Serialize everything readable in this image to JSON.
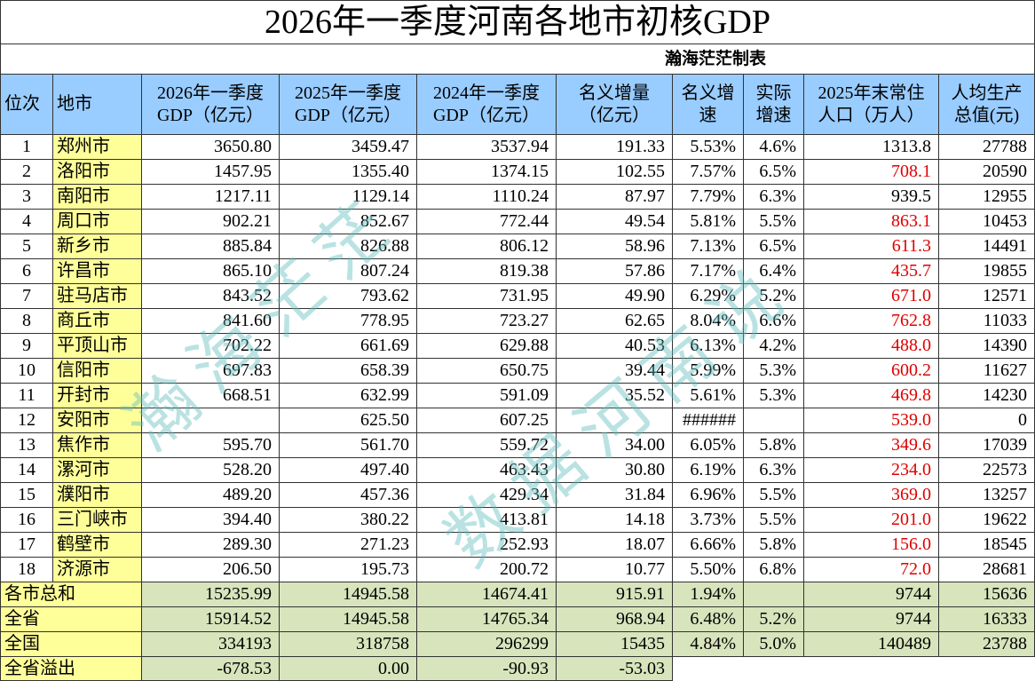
{
  "title": "2026年一季度河南各地市初核GDP",
  "subtitle": "瀚海茫茫制表",
  "watermark": [
    "瀚海茫茫",
    "数据河南说"
  ],
  "table": {
    "header": [
      "位次",
      "地市",
      "2026年一季度\nGDP（亿元）",
      "2025年一季度\nGDP（亿元）",
      "2024年一季度\nGDP（亿元）",
      "名义增量\n（亿元）",
      "名义增\n速",
      "实际\n增速",
      "2025年末常住\n人口（万人）",
      "人均生产\n总值(元)"
    ],
    "rows": [
      [
        "1",
        "郑州市",
        "3650.80",
        "3459.47",
        "3537.94",
        "191.33",
        "5.53%",
        "4.6%",
        "1313.8",
        "27788"
      ],
      [
        "2",
        "洛阳市",
        "1457.95",
        "1355.40",
        "1374.15",
        "102.55",
        "7.57%",
        "6.5%",
        "708.1",
        "20590"
      ],
      [
        "3",
        "南阳市",
        "1217.11",
        "1129.14",
        "1110.24",
        "87.97",
        "7.79%",
        "6.3%",
        "939.5",
        "12955"
      ],
      [
        "4",
        "周口市",
        "902.21",
        "852.67",
        "772.44",
        "49.54",
        "5.81%",
        "5.5%",
        "863.1",
        "10453"
      ],
      [
        "5",
        "新乡市",
        "885.84",
        "826.88",
        "806.12",
        "58.96",
        "7.13%",
        "6.5%",
        "611.3",
        "14491"
      ],
      [
        "6",
        "许昌市",
        "865.10",
        "807.24",
        "819.38",
        "57.86",
        "7.17%",
        "6.4%",
        "435.7",
        "19855"
      ],
      [
        "7",
        "驻马店市",
        "843.52",
        "793.62",
        "731.95",
        "49.90",
        "6.29%",
        "5.2%",
        "671.0",
        "12571"
      ],
      [
        "8",
        "商丘市",
        "841.60",
        "778.95",
        "723.27",
        "62.65",
        "8.04%",
        "6.6%",
        "762.8",
        "11033"
      ],
      [
        "9",
        "平顶山市",
        "702.22",
        "661.69",
        "629.88",
        "40.53",
        "6.13%",
        "4.2%",
        "488.0",
        "14390"
      ],
      [
        "10",
        "信阳市",
        "697.83",
        "658.39",
        "650.75",
        "39.44",
        "5.99%",
        "5.3%",
        "600.2",
        "11627"
      ],
      [
        "11",
        "开封市",
        "668.51",
        "632.99",
        "591.09",
        "35.52",
        "5.61%",
        "5.3%",
        "469.8",
        "14230"
      ],
      [
        "12",
        "安阳市",
        null,
        "625.50",
        "607.25",
        null,
        "######",
        null,
        "539.0",
        "0"
      ],
      [
        "13",
        "焦作市",
        "595.70",
        "561.70",
        "559.72",
        "34.00",
        "6.05%",
        "5.8%",
        "349.6",
        "17039"
      ],
      [
        "14",
        "漯河市",
        "528.20",
        "497.40",
        "463.43",
        "30.80",
        "6.19%",
        "6.3%",
        "234.0",
        "22573"
      ],
      [
        "15",
        "濮阳市",
        "489.20",
        "457.36",
        "429.34",
        "31.84",
        "6.96%",
        "5.5%",
        "369.0",
        "13257"
      ],
      [
        "16",
        "三门峡市",
        "394.40",
        "380.22",
        "413.81",
        "14.18",
        "3.73%",
        "5.5%",
        "201.0",
        "19622"
      ],
      [
        "17",
        "鹤壁市",
        "289.30",
        "271.23",
        "252.93",
        "18.07",
        "6.66%",
        "5.8%",
        "156.0",
        "18545"
      ],
      [
        "18",
        "济源市",
        "206.50",
        "195.73",
        "200.72",
        "10.77",
        "5.50%",
        "6.8%",
        "72.0",
        "28681"
      ]
    ],
    "population_colors": [
      "#000000",
      "#e00000",
      "#000000",
      "#e00000",
      "#e00000",
      "#e00000",
      "#e00000",
      "#e00000",
      "#e00000",
      "#e00000",
      "#e00000",
      "#e00000",
      "#e00000",
      "#e00000",
      "#e00000",
      "#e00000",
      "#e00000",
      "#e00000"
    ],
    "summary": [
      [
        "各市总和",
        "15235.99",
        "14945.58",
        "14674.41",
        "915.91",
        "1.94%",
        null,
        "9744",
        "15636"
      ],
      [
        "全省",
        "15914.52",
        "14945.58",
        "14765.34",
        "968.94",
        "6.48%",
        "5.2%",
        "9744",
        "16333"
      ],
      [
        "全国",
        "334193",
        "318758",
        "296299",
        "15435",
        "4.84%",
        "5.0%",
        "140489",
        "23788"
      ],
      [
        "全省溢出",
        "-678.53",
        "0.00",
        "-90.93",
        "-53.03",
        null,
        null,
        null,
        null
      ]
    ]
  }
}
